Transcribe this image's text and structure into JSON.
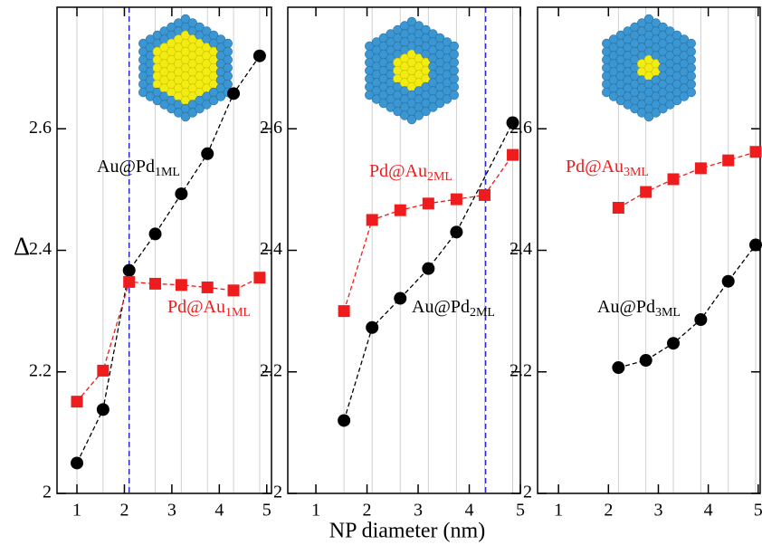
{
  "chart_data": [
    {
      "type": "line",
      "y_label": "Δ",
      "series": [
        {
          "name": "Au@Pd",
          "color": "#000000",
          "marker": "circle",
          "x": [
            1,
            1.55,
            2.1,
            2.65,
            3.2,
            3.75,
            4.3,
            4.85
          ],
          "values": [
            2.05,
            2.138,
            2.367,
            2.427,
            2.493,
            2.559,
            2.658,
            2.72
          ]
        },
        {
          "name": "Pd@Au",
          "color": "#ee1c1c",
          "marker": "square",
          "x": [
            1,
            1.55,
            2.1,
            2.65,
            3.2,
            3.75,
            4.3,
            4.85
          ],
          "values": [
            2.151,
            2.202,
            2.348,
            2.345,
            2.343,
            2.339,
            2.334,
            2.355
          ]
        }
      ],
      "annotations": [
        {
          "text": "Au@Pd",
          "sub": "1ML",
          "color": "#000000"
        },
        {
          "text": "Pd@Au",
          "sub": "1ML",
          "color": "#ee1c1c"
        }
      ],
      "vline": 2.1,
      "vline_color": "#2b2bd0",
      "xlim": [
        0.58,
        5.1
      ],
      "xticks": [
        1,
        2,
        3,
        4,
        5
      ],
      "ylim": [
        2,
        2.8
      ],
      "yticks": [
        2,
        2.2,
        2.4,
        2.6
      ]
    },
    {
      "type": "line",
      "x_label": "NP diameter (nm)",
      "series": [
        {
          "name": "Au@Pd",
          "color": "#000000",
          "marker": "circle",
          "x": [
            1.55,
            2.1,
            2.65,
            3.2,
            3.75,
            4.85
          ],
          "values": [
            2.12,
            2.273,
            2.321,
            2.37,
            2.43,
            2.61
          ]
        },
        {
          "name": "Pd@Au",
          "color": "#ee1c1c",
          "marker": "square",
          "x": [
            1.55,
            2.1,
            2.65,
            3.2,
            3.75,
            4.3,
            4.85
          ],
          "values": [
            2.3,
            2.45,
            2.466,
            2.477,
            2.484,
            2.491,
            2.557
          ]
        }
      ],
      "annotations": [
        {
          "text": "Pd@Au",
          "sub": "2ML",
          "color": "#ee1c1c"
        },
        {
          "text": "Au@Pd",
          "sub": "2ML",
          "color": "#000000"
        }
      ],
      "vline": 4.32,
      "vline_color": "#2b2bd0",
      "xlim": [
        0.45,
        5.0
      ],
      "xticks": [
        1,
        2,
        3,
        4,
        5
      ],
      "ylim": [
        2,
        2.8
      ],
      "yticks": [
        2,
        2.2,
        2.4,
        2.6
      ]
    },
    {
      "type": "line",
      "series": [
        {
          "name": "Au@Pd",
          "color": "#000000",
          "marker": "circle",
          "x": [
            2.2,
            2.75,
            3.3,
            3.85,
            4.4,
            4.95
          ],
          "values": [
            2.207,
            2.219,
            2.247,
            2.286,
            2.349,
            2.409
          ]
        },
        {
          "name": "Pd@Au",
          "color": "#ee1c1c",
          "marker": "square",
          "x": [
            2.2,
            2.75,
            3.3,
            3.85,
            4.4,
            4.95
          ],
          "values": [
            2.47,
            2.496,
            2.517,
            2.535,
            2.548,
            2.562
          ]
        }
      ],
      "annotations": [
        {
          "text": "Pd@Au",
          "sub": "3ML",
          "color": "#ee1c1c"
        },
        {
          "text": "Au@Pd",
          "sub": "3ML",
          "color": "#000000"
        }
      ],
      "xlim": [
        0.58,
        5.04
      ],
      "xticks": [
        1,
        2,
        3,
        4,
        5
      ],
      "ylim": [
        2,
        2.8
      ],
      "yticks": [
        2,
        2.2,
        2.4,
        2.6
      ]
    }
  ]
}
